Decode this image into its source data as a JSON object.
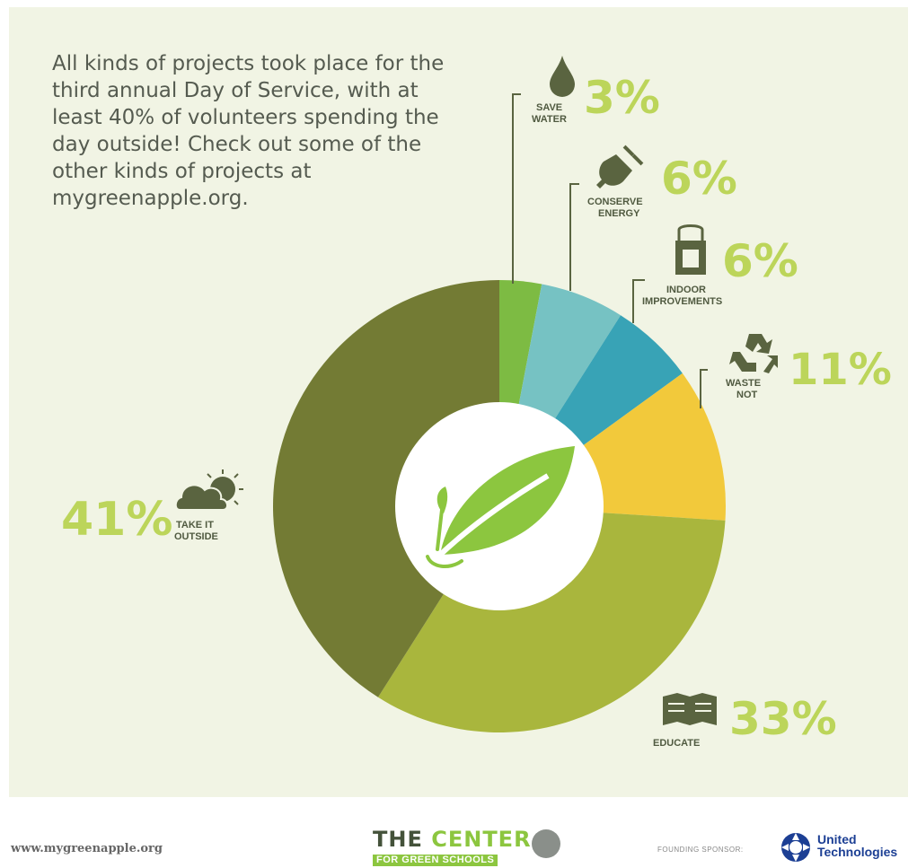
{
  "intro_text": "All kinds of projects took place for the third annual Day of Service, with at least 40% of volunteers spending the day outside! Check out some of the other kinds of projects at mygreenapple.org.",
  "colors": {
    "background": "#f1f4e4",
    "save_water": "#7dbb43",
    "conserve_energy": "#76c2c3",
    "indoor_improvements": "#38a3b6",
    "waste_not": "#f2c93b",
    "educate": "#a9b63d",
    "take_it_outside": "#737b34",
    "percent_text": "#bcd55a"
  },
  "chart_data": {
    "type": "pie",
    "title": "",
    "series": [
      {
        "label_lines": [
          "SAVE",
          "WATER"
        ],
        "value": 3,
        "display": "3%",
        "icon": "water-drop-icon"
      },
      {
        "label_lines": [
          "CONSERVE",
          "ENERGY"
        ],
        "value": 6,
        "display": "6%",
        "icon": "plug-icon"
      },
      {
        "label_lines": [
          "INDOOR",
          "IMPROVEMENTS"
        ],
        "value": 6,
        "display": "6%",
        "icon": "paint-can-icon"
      },
      {
        "label_lines": [
          "WASTE",
          "NOT"
        ],
        "value": 11,
        "display": "11%",
        "icon": "recycle-icon"
      },
      {
        "label_lines": [
          "EDUCATE"
        ],
        "value": 33,
        "display": "33%",
        "icon": "book-icon"
      },
      {
        "label_lines": [
          "TAKE IT",
          "OUTSIDE"
        ],
        "value": 41,
        "display": "41%",
        "icon": "cloud-sun-icon"
      }
    ],
    "center_icon": "leaf-icon"
  },
  "footer": {
    "url": "www.mygreenapple.org",
    "center_name_part1": "THE ",
    "center_name_part2": "CENTER",
    "center_subtitle": "FOR GREEN SCHOOLS",
    "sponsor_label": "FOUNDING SPONSOR:",
    "sponsor_name_line1": "United",
    "sponsor_name_line2": "Technologies"
  }
}
